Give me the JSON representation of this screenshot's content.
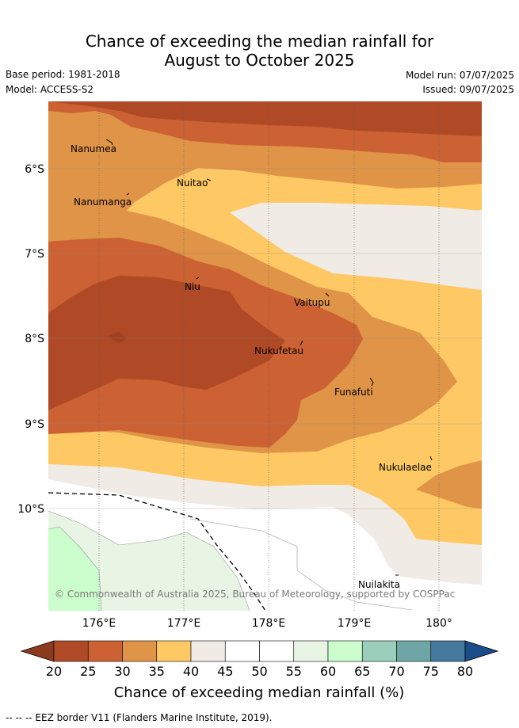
{
  "title_line1": "Chance of exceeding the median rainfall for",
  "title_line2": "August to October 2025",
  "base_period": "Base period: 1981-2018",
  "model": "Model: ACCESS-S2",
  "model_run": "Model run: 07/07/2025",
  "issued": "Issued: 09/07/2025",
  "places": [
    {
      "name": "Nanumea"
    },
    {
      "name": "Nuitao"
    },
    {
      "name": "Nanumanga"
    },
    {
      "name": "Niu"
    },
    {
      "name": "Vaitupu"
    },
    {
      "name": "Nukufetau"
    },
    {
      "name": "Funafuti"
    },
    {
      "name": "Nukulaelae"
    },
    {
      "name": "Nuilakita"
    }
  ],
  "lat_ticks": [
    "6°S",
    "7°S",
    "8°S",
    "9°S",
    "10°S"
  ],
  "lon_ticks": [
    "176°E",
    "177°E",
    "178°E",
    "179°E",
    "180°"
  ],
  "copyright": "© Commonwealth of Australia 2025, Bureau of Meteorology, supported by COSPPac",
  "colorbar": {
    "ticks": [
      "20",
      "25",
      "30",
      "35",
      "40",
      "45",
      "50",
      "55",
      "60",
      "65",
      "70",
      "75",
      "80"
    ],
    "colors": [
      "#8c3a1d",
      "#b04a26",
      "#cc6233",
      "#e09447",
      "#fec964",
      "#f0ebe5",
      "#ffffff",
      "#ffffff",
      "#e8f5e4",
      "#ccfdcc",
      "#9bcfbb",
      "#6ea6a6",
      "#45799d",
      "#1a4d8a"
    ],
    "label": "Chance of exceeding median rainfall (%)"
  },
  "footer": "-- -- -- EEZ border V11 (Flanders Marine Institute, 2019)."
}
